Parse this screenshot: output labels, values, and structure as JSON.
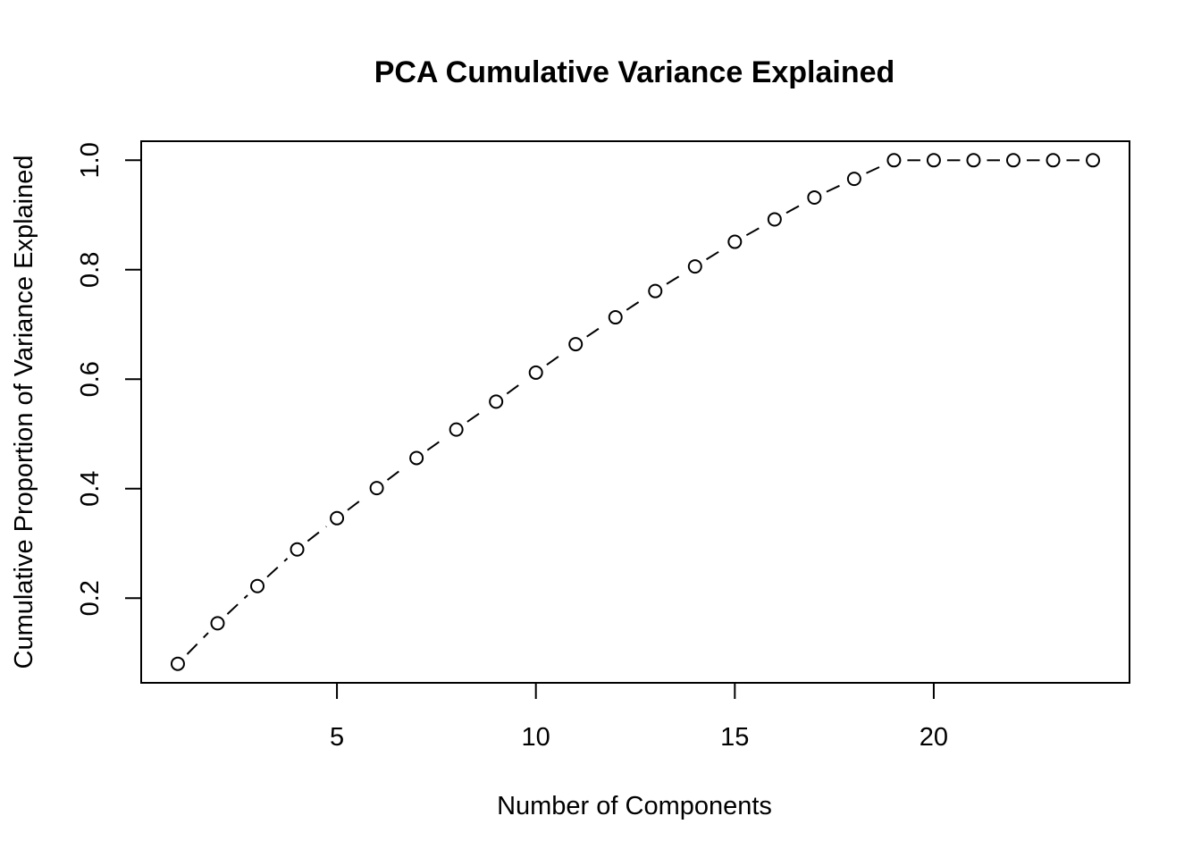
{
  "chart_data": {
    "type": "line",
    "title": "PCA Cumulative Variance Explained",
    "xlabel": "Number of Components",
    "ylabel": "Cumulative Proportion of Variance Explained",
    "x": [
      1,
      2,
      3,
      4,
      5,
      6,
      7,
      8,
      9,
      10,
      11,
      12,
      13,
      14,
      15,
      16,
      17,
      18,
      19,
      20,
      21,
      22,
      23,
      24
    ],
    "y": [
      0.08,
      0.154,
      0.222,
      0.289,
      0.346,
      0.401,
      0.456,
      0.508,
      0.559,
      0.612,
      0.664,
      0.713,
      0.761,
      0.806,
      0.851,
      0.892,
      0.932,
      0.966,
      1.0,
      1.0,
      1.0,
      1.0,
      1.0,
      1.0
    ],
    "xlim": [
      0.08,
      24.92
    ],
    "ylim": [
      0.0452,
      1.0348
    ],
    "xticks": [
      5,
      10,
      15,
      20
    ],
    "xtick_labels": [
      "5",
      "10",
      "15",
      "20"
    ],
    "yticks": [
      0.2,
      0.4,
      0.6,
      0.8,
      1.0
    ],
    "ytick_labels": [
      "0.2",
      "0.4",
      "0.6",
      "0.8",
      "1.0"
    ],
    "line_style": "dashed",
    "marker": "open-circle",
    "color": "#000000",
    "grid": false,
    "legend": "none"
  }
}
